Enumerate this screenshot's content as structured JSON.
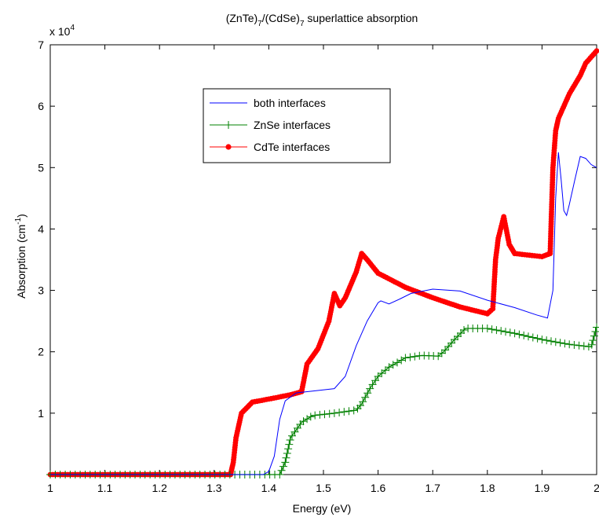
{
  "chart_data": {
    "type": "line",
    "title": {
      "base1": "(ZnTe)",
      "sub1": "7",
      "mid": "/(CdSe)",
      "sub2": "7",
      "tail": " superlattice absorption"
    },
    "xlabel": "Energy (eV)",
    "ylabel": {
      "base": "Absorption (cm",
      "sup": "-1",
      "tail": ")"
    },
    "y_multiplier": {
      "base": "x 10",
      "exp": "4"
    },
    "xlim": [
      1.0,
      2.0
    ],
    "ylim": [
      0,
      70000
    ],
    "x_ticks": [
      1,
      1.1,
      1.2,
      1.3,
      1.4,
      1.5,
      1.6,
      1.7,
      1.8,
      1.9,
      2
    ],
    "x_tick_labels": [
      "1",
      "1.1",
      "1.2",
      "1.3",
      "1.4",
      "1.5",
      "1.6",
      "1.7",
      "1.8",
      "1.9",
      "2"
    ],
    "y_ticks": [
      10000,
      20000,
      30000,
      40000,
      50000,
      60000,
      70000
    ],
    "y_tick_labels": [
      "1",
      "2",
      "3",
      "4",
      "5",
      "6",
      "7"
    ],
    "grid": false,
    "legend_position": "upper-center",
    "series": [
      {
        "name": "both interfaces",
        "color": "#0000ff",
        "marker": "none",
        "points": [
          [
            1.0,
            0
          ],
          [
            1.39,
            0
          ],
          [
            1.4,
            500
          ],
          [
            1.41,
            3000
          ],
          [
            1.42,
            9000
          ],
          [
            1.43,
            12000
          ],
          [
            1.45,
            13300
          ],
          [
            1.48,
            13600
          ],
          [
            1.52,
            14000
          ],
          [
            1.54,
            16000
          ],
          [
            1.56,
            21000
          ],
          [
            1.58,
            25000
          ],
          [
            1.6,
            28000
          ],
          [
            1.605,
            28300
          ],
          [
            1.62,
            27800
          ],
          [
            1.64,
            28600
          ],
          [
            1.66,
            29500
          ],
          [
            1.7,
            30200
          ],
          [
            1.75,
            29900
          ],
          [
            1.8,
            28400
          ],
          [
            1.85,
            27200
          ],
          [
            1.89,
            26000
          ],
          [
            1.91,
            25500
          ],
          [
            1.92,
            30000
          ],
          [
            1.925,
            45000
          ],
          [
            1.93,
            52500
          ],
          [
            1.935,
            48000
          ],
          [
            1.94,
            43000
          ],
          [
            1.945,
            42200
          ],
          [
            1.95,
            44000
          ],
          [
            1.96,
            48000
          ],
          [
            1.97,
            51800
          ],
          [
            1.98,
            51500
          ],
          [
            1.99,
            50500
          ],
          [
            2.0,
            50000
          ]
        ]
      },
      {
        "name": "ZnSe interfaces",
        "color": "#008000",
        "marker": "plus",
        "points": [
          [
            1.0,
            0
          ],
          [
            1.42,
            0
          ],
          [
            1.43,
            2000
          ],
          [
            1.44,
            6000
          ],
          [
            1.46,
            8500
          ],
          [
            1.48,
            9600
          ],
          [
            1.52,
            10000
          ],
          [
            1.56,
            10500
          ],
          [
            1.57,
            11500
          ],
          [
            1.585,
            14000
          ],
          [
            1.6,
            16000
          ],
          [
            1.62,
            17500
          ],
          [
            1.65,
            19000
          ],
          [
            1.68,
            19400
          ],
          [
            1.71,
            19300
          ],
          [
            1.72,
            20000
          ],
          [
            1.74,
            22000
          ],
          [
            1.76,
            23800
          ],
          [
            1.8,
            23800
          ],
          [
            1.85,
            23000
          ],
          [
            1.9,
            22000
          ],
          [
            1.95,
            21200
          ],
          [
            1.99,
            20800
          ],
          [
            2.0,
            24000
          ]
        ]
      },
      {
        "name": "CdTe interfaces",
        "color": "#ff0000",
        "marker": "dot",
        "points": [
          [
            1.0,
            0
          ],
          [
            1.33,
            0
          ],
          [
            1.335,
            2000
          ],
          [
            1.34,
            6000
          ],
          [
            1.35,
            10000
          ],
          [
            1.37,
            11800
          ],
          [
            1.4,
            12300
          ],
          [
            1.44,
            13000
          ],
          [
            1.46,
            13500
          ],
          [
            1.47,
            18000
          ],
          [
            1.49,
            20500
          ],
          [
            1.51,
            25000
          ],
          [
            1.52,
            29500
          ],
          [
            1.53,
            27500
          ],
          [
            1.54,
            28800
          ],
          [
            1.56,
            33000
          ],
          [
            1.57,
            36000
          ],
          [
            1.58,
            35000
          ],
          [
            1.6,
            32800
          ],
          [
            1.65,
            30500
          ],
          [
            1.7,
            28800
          ],
          [
            1.75,
            27300
          ],
          [
            1.8,
            26200
          ],
          [
            1.81,
            27000
          ],
          [
            1.815,
            35000
          ],
          [
            1.82,
            38500
          ],
          [
            1.83,
            42000
          ],
          [
            1.84,
            37500
          ],
          [
            1.85,
            36000
          ],
          [
            1.9,
            35500
          ],
          [
            1.915,
            36000
          ],
          [
            1.92,
            50000
          ],
          [
            1.925,
            56000
          ],
          [
            1.93,
            58000
          ],
          [
            1.95,
            62000
          ],
          [
            1.97,
            65000
          ],
          [
            1.98,
            67000
          ],
          [
            2.0,
            69000
          ]
        ]
      }
    ]
  }
}
